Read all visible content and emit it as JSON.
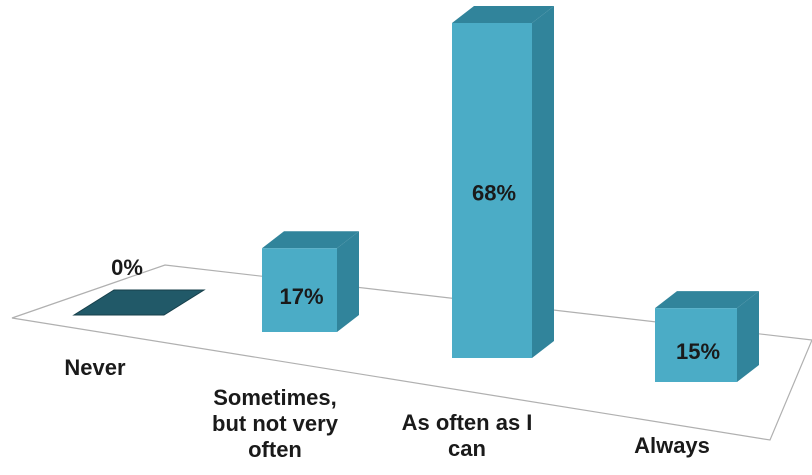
{
  "chart_data": {
    "type": "bar",
    "style": "3d-column",
    "categories": [
      [
        "Never"
      ],
      [
        "Sometimes,",
        "but not very",
        "often"
      ],
      [
        "As often as I",
        "can"
      ],
      [
        "Always"
      ]
    ],
    "values": [
      0,
      17,
      68,
      15
    ],
    "value_labels": [
      "0%",
      "17%",
      "68%",
      "15%"
    ],
    "unit": "%",
    "title": "",
    "xlabel": "",
    "ylabel": "",
    "ylim": [
      0,
      70
    ],
    "grid": false,
    "legend": "none",
    "colors": {
      "front": "#4bacc6",
      "side": "#31849b",
      "top": "#31849b",
      "zero_bar": "#215968",
      "floor_line": "#b0b0b0"
    }
  }
}
